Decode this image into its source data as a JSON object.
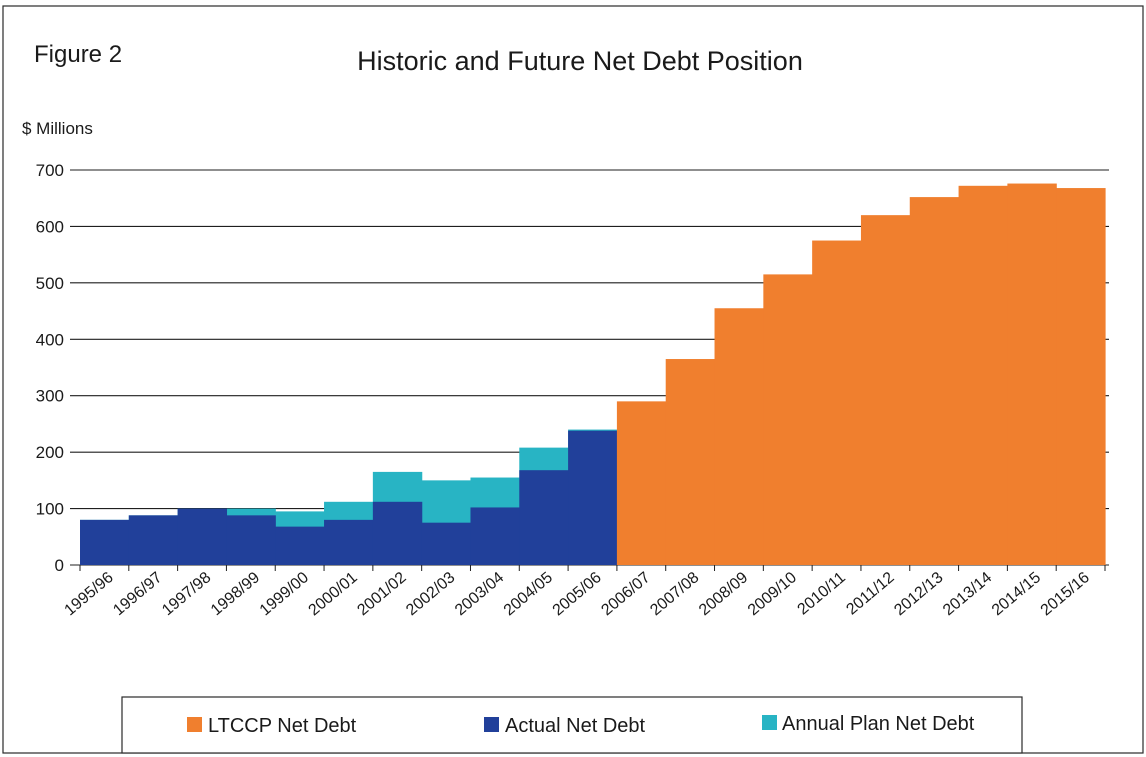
{
  "figure_label": "Figure 2",
  "chart_data": {
    "type": "bar",
    "title": "Historic and Future Net Debt Position",
    "ylabel": "$ Millions",
    "xlabel": "",
    "ylim": [
      0,
      700
    ],
    "yticks": [
      0,
      100,
      200,
      300,
      400,
      500,
      600,
      700
    ],
    "grid": true,
    "legend_position": "bottom",
    "categories": [
      "1995/96",
      "1996/97",
      "1997/98",
      "1998/99",
      "1999/00",
      "2000/01",
      "2001/02",
      "2002/03",
      "2003/04",
      "2004/05",
      "2005/06",
      "2006/07",
      "2007/08",
      "2008/09",
      "2009/10",
      "2010/11",
      "2011/12",
      "2012/13",
      "2013/14",
      "2014/15",
      "2015/16"
    ],
    "series": [
      {
        "name": "LTCCP Net Debt",
        "color": "#f07f2e",
        "values": [
          null,
          null,
          null,
          null,
          null,
          null,
          null,
          null,
          null,
          null,
          null,
          290,
          365,
          455,
          515,
          575,
          620,
          652,
          672,
          676,
          668
        ]
      },
      {
        "name": "Actual Net Debt",
        "color": "#21409a",
        "values": [
          80,
          88,
          100,
          88,
          68,
          80,
          112,
          75,
          102,
          168,
          238,
          null,
          null,
          null,
          null,
          null,
          null,
          null,
          null,
          null,
          null
        ]
      },
      {
        "name": "Annual Plan Net Debt",
        "color": "#28b4c4",
        "values": [
          80,
          88,
          100,
          100,
          95,
          112,
          165,
          150,
          155,
          208,
          240,
          null,
          null,
          null,
          null,
          null,
          null,
          null,
          null,
          null,
          null
        ]
      }
    ]
  }
}
